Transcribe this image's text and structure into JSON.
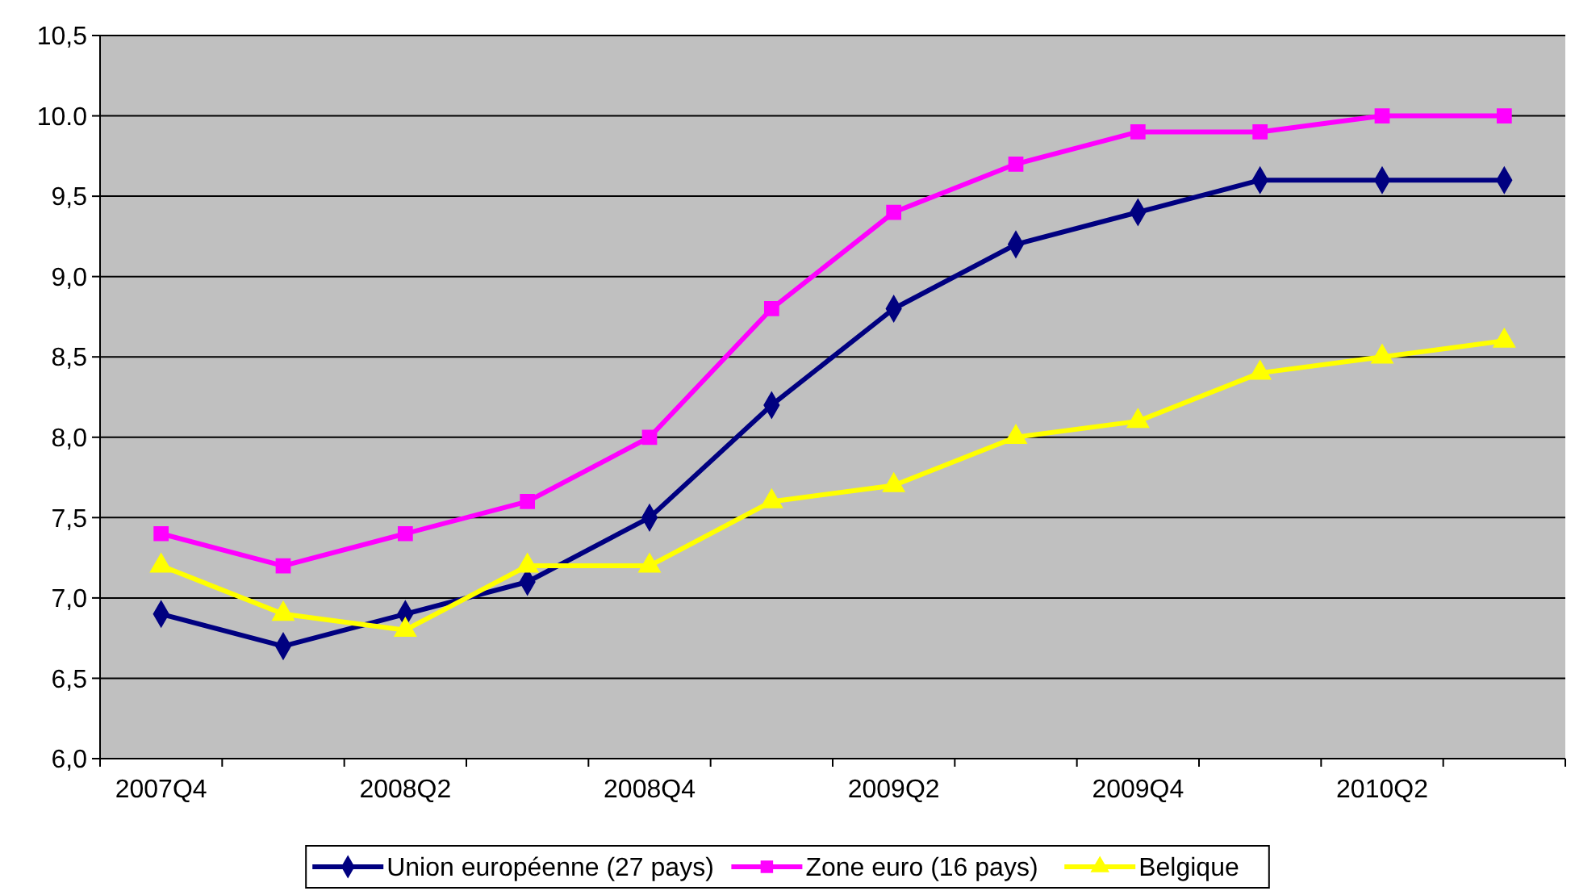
{
  "chart_data": {
    "type": "line",
    "categories": [
      "2007Q4",
      null,
      "2008Q2",
      null,
      "2008Q4",
      null,
      "2009Q2",
      null,
      "2009Q4",
      null,
      "2010Q2",
      null
    ],
    "ylim": [
      6.0,
      10.5
    ],
    "yticks": [
      {
        "value": 6.0,
        "label": "6,0"
      },
      {
        "value": 6.5,
        "label": "6,5"
      },
      {
        "value": 7.0,
        "label": "7,0"
      },
      {
        "value": 7.5,
        "label": "7,5"
      },
      {
        "value": 8.0,
        "label": "8,0"
      },
      {
        "value": 8.5,
        "label": "8,5"
      },
      {
        "value": 9.0,
        "label": "9,0"
      },
      {
        "value": 9.5,
        "label": "9,5"
      },
      {
        "value": 10.0,
        "label": "10.0"
      },
      {
        "value": 10.5,
        "label": "10,5"
      }
    ],
    "grid": "y",
    "legend": "bottom",
    "series": [
      {
        "name": "Union européenne (27 pays)",
        "color": "#000080",
        "marker": "diamond",
        "values": [
          6.9,
          6.7,
          6.9,
          7.1,
          7.5,
          8.2,
          8.8,
          9.2,
          9.4,
          9.6,
          9.6,
          9.6
        ]
      },
      {
        "name": "Zone euro (16 pays)",
        "color": "#ff00ff",
        "marker": "square",
        "values": [
          7.4,
          7.2,
          7.4,
          7.6,
          8.0,
          8.8,
          9.4,
          9.7,
          9.9,
          9.9,
          10.0,
          10.0
        ]
      },
      {
        "name": "Belgique",
        "color": "#ffff00",
        "marker": "triangle",
        "values": [
          7.2,
          6.9,
          6.8,
          7.2,
          7.2,
          7.6,
          7.7,
          8.0,
          8.1,
          8.4,
          8.5,
          8.6
        ]
      }
    ]
  }
}
